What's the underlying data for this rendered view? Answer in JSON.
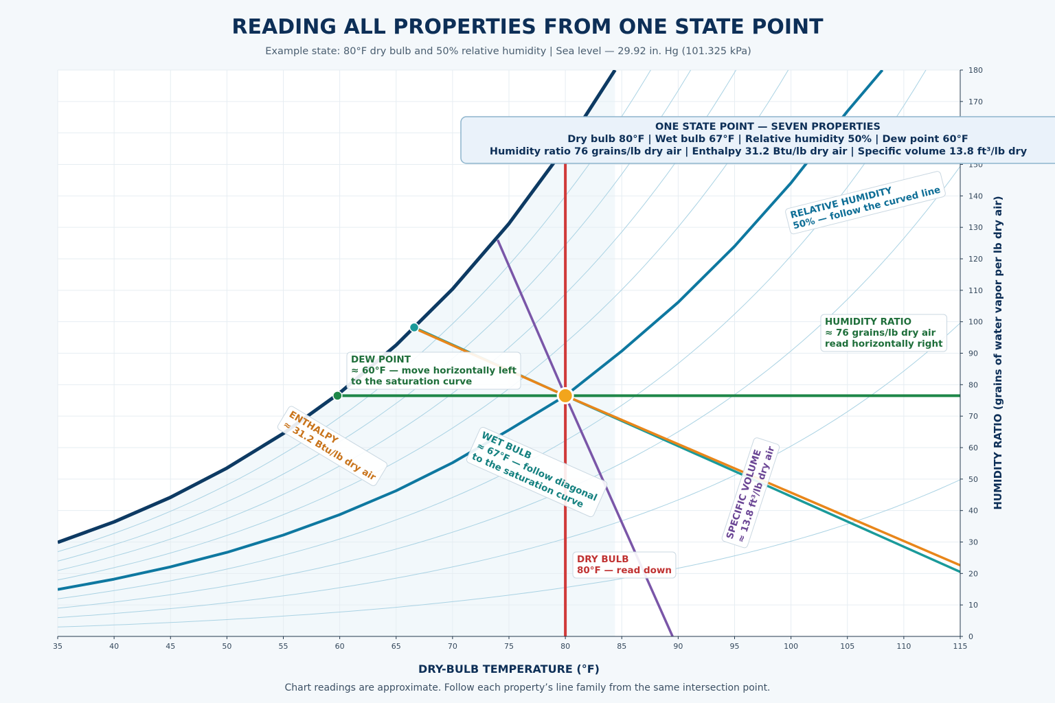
{
  "chart_data": {
    "type": "line",
    "title": "READING ALL PROPERTIES FROM ONE STATE POINT",
    "subtitle": "Example state: 80°F dry bulb and 50% relative humidity  |  Sea level — 29.92 in. Hg (101.325 kPa)",
    "xlabel": "DRY-BULB TEMPERATURE (°F)",
    "ylabel": "HUMIDITY RATIO (grains of water vapor per lb dry air)",
    "xlim": [
      35,
      115
    ],
    "ylim": [
      0,
      180
    ],
    "x_ticks": [
      "35",
      "40",
      "45",
      "50",
      "55",
      "60",
      "65",
      "70",
      "75",
      "80",
      "85",
      "90",
      "95",
      "100",
      "105",
      "110",
      "115"
    ],
    "y_ticks": [
      "0",
      "10",
      "20",
      "30",
      "40",
      "50",
      "60",
      "70",
      "80",
      "90",
      "100",
      "110",
      "120",
      "130",
      "140",
      "150",
      "160",
      "170",
      "180"
    ],
    "grid": true,
    "footnote": "Chart readings are approximate. Follow each property’s line family from the same intersection point.",
    "state_point": {
      "dry_bulb": 80,
      "humidity_ratio": 76.5,
      "color": "#f2a51c"
    },
    "series": [
      {
        "key": "saturation",
        "color": "#0d3a63",
        "points": [
          [
            35,
            29.9
          ],
          [
            40,
            36.4
          ],
          [
            45,
            44.2
          ],
          [
            50,
            53.5
          ],
          [
            55,
            64.5
          ],
          [
            60,
            77.4
          ],
          [
            65,
            92.6
          ],
          [
            70,
            110.4
          ],
          [
            75,
            131.2
          ],
          [
            80,
            155.5
          ],
          [
            84.4,
            180
          ]
        ]
      },
      {
        "key": "rh50",
        "color": "#0e78a0",
        "points": [
          [
            35,
            14.9
          ],
          [
            40,
            18.2
          ],
          [
            45,
            22.1
          ],
          [
            50,
            26.7
          ],
          [
            55,
            32.2
          ],
          [
            60,
            38.7
          ],
          [
            65,
            46.3
          ],
          [
            70,
            55.2
          ],
          [
            75,
            65.6
          ],
          [
            80,
            76.5
          ],
          [
            85,
            90.7
          ],
          [
            90,
            106.2
          ],
          [
            95,
            124.0
          ],
          [
            100,
            144.1
          ],
          [
            105,
            166.9
          ],
          [
            108.1,
            180
          ]
        ]
      },
      {
        "key": "rh_family",
        "color": "#a9d2e3",
        "points": [],
        "fractions": [
          0.1,
          0.2,
          0.3,
          0.4,
          0.6,
          0.7,
          0.8,
          0.9
        ]
      },
      {
        "key": "dry_bulb_line",
        "color": "#d03a3a",
        "points": [
          [
            80,
            0
          ],
          [
            80,
            155.5
          ]
        ]
      },
      {
        "key": "humidity_ratio_line",
        "color": "#1e8748",
        "points": [
          [
            59.8,
            76.5
          ],
          [
            115,
            76.5
          ]
        ]
      },
      {
        "key": "wet_bulb_line",
        "color": "#1a9a9a",
        "points": [
          [
            66.6,
            98.2
          ],
          [
            80,
            76.5
          ],
          [
            115,
            20.5
          ]
        ]
      },
      {
        "key": "enthalpy_line",
        "color": "#e8861a",
        "points": [
          [
            67,
            97.3
          ],
          [
            80,
            76.5
          ],
          [
            115,
            22.6
          ]
        ]
      },
      {
        "key": "specific_volume_line",
        "color": "#7a56a8",
        "points": [
          [
            74,
            126
          ],
          [
            80,
            76.5
          ],
          [
            89.5,
            0
          ]
        ]
      }
    ],
    "markers": [
      {
        "key": "dew_point_marker",
        "x": 59.8,
        "y": 76.5,
        "color": "#1e8748"
      },
      {
        "key": "wet_bulb_marker",
        "x": 66.6,
        "y": 98.2,
        "color": "#1a9a9a"
      }
    ],
    "annotations": [
      {
        "key": "relative_humidity",
        "lines": [
          "RELATIVE HUMIDITY",
          "50% — follow the curved line"
        ],
        "color": "#0e6e96"
      },
      {
        "key": "humidity_ratio",
        "lines": [
          "HUMIDITY RATIO",
          "≈ 76 grains/lb dry air",
          "read horizontally right"
        ],
        "color": "#1e6e3a"
      },
      {
        "key": "dew_point",
        "lines": [
          "DEW POINT",
          "≈ 60°F — move horizontally left",
          "to the saturation curve"
        ],
        "color": "#1e6e3a"
      },
      {
        "key": "enthalpy",
        "lines": [
          "ENTHALPY",
          "≈ 31.2 Btu/lb dry air"
        ],
        "color": "#c8731a"
      },
      {
        "key": "wet_bulb",
        "lines": [
          "WET BULB",
          "≈ 67°F — follow diagonal",
          "to the saturation curve"
        ],
        "color": "#14807f"
      },
      {
        "key": "specific_volume",
        "lines": [
          "SPECIFIC VOLUME",
          "≈ 13.8 ft³/lb dry air"
        ],
        "color": "#6a4594"
      },
      {
        "key": "dry_bulb",
        "lines": [
          "DRY BULB",
          "80°F — read down"
        ],
        "color": "#c03232"
      }
    ],
    "summary": {
      "title": "ONE STATE POINT — SEVEN PROPERTIES",
      "line1": "Dry bulb 80°F   |   Wet bulb 67°F   |   Relative humidity 50%   |   Dew point 60°F",
      "line2": "Humidity ratio 76 grains/lb dry air   |   Enthalpy 31.2 Btu/lb dry air   |   Specific volume 13.8 ft³/lb dry"
    }
  }
}
